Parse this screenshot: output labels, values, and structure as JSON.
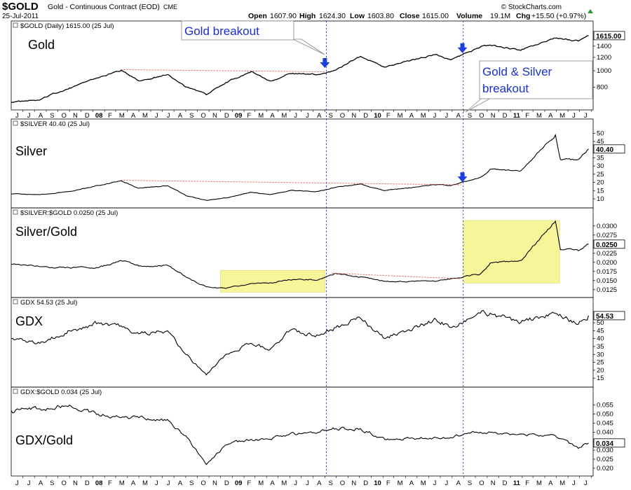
{
  "header": {
    "symbol": "$GOLD",
    "description": "Gold - Continuous Contract (EOD)",
    "exchange": "CME",
    "date": "25-Jul-2011",
    "open_label": "Open",
    "open": "1607.90",
    "high_label": "High",
    "high": "1624.30",
    "low_label": "Low",
    "low": "1603.80",
    "close_label": "Close",
    "close": "1615.00",
    "volume_label": "Volume",
    "volume": "19.1M",
    "chg_label": "Chg",
    "chg": "+15.50 (+0.97%)",
    "credit": "© StockCharts.com"
  },
  "annotations": {
    "gold_breakout": "Gold breakout",
    "gold_silver_breakout_line1": "Gold & Silver",
    "gold_silver_breakout_line2": "breakout"
  },
  "chart_data": [
    {
      "type": "line",
      "legend": "$GOLD (Daily) 1615.00 (25 Jul)",
      "label": "Gold",
      "last_value_label": "1615.00",
      "y_ticks": [
        "800",
        "1000",
        "1200",
        "1400"
      ],
      "y_tick_values": [
        800,
        1000,
        1200,
        1400
      ],
      "ylim": [
        620,
        1660
      ],
      "log": true,
      "series": [
        {
          "x": [
            "2007-06-01",
            "2007-08-15",
            "2007-11-01",
            "2008-03-15",
            "2008-05-01",
            "2008-07-15",
            "2008-09-01",
            "2008-10-25",
            "2008-12-15",
            "2009-02-20",
            "2009-04-10",
            "2009-06-01",
            "2009-08-15",
            "2009-09-30",
            "2009-12-03",
            "2010-02-05",
            "2010-06-20",
            "2010-07-28",
            "2010-10-14",
            "2010-11-09",
            "2011-01-28",
            "2011-04-29",
            "2011-06-28",
            "2011-07-25"
          ],
          "values": [
            650,
            670,
            790,
            1003,
            870,
            950,
            800,
            720,
            850,
            990,
            870,
            960,
            950,
            1010,
            1215,
            1050,
            1250,
            1160,
            1380,
            1420,
            1320,
            1560,
            1500,
            1615
          ]
        }
      ]
    },
    {
      "type": "line",
      "legend": "$SILVER 40.40 (25 Jul)",
      "label": "Silver",
      "last_value_label": "40.40",
      "y_ticks": [
        "10",
        "15",
        "20",
        "25",
        "30",
        "35",
        "40",
        "45",
        "50"
      ],
      "y_tick_values": [
        10,
        15,
        20,
        25,
        30,
        35,
        40,
        45,
        50
      ],
      "ylim": [
        7,
        51
      ],
      "series": [
        {
          "x": [
            "2007-06-01",
            "2007-08-15",
            "2007-11-01",
            "2008-03-15",
            "2008-05-01",
            "2008-07-15",
            "2008-09-01",
            "2008-10-25",
            "2008-12-15",
            "2009-02-20",
            "2009-04-10",
            "2009-06-01",
            "2009-08-15",
            "2009-09-30",
            "2009-12-03",
            "2010-02-05",
            "2010-06-20",
            "2010-07-28",
            "2010-10-14",
            "2010-11-09",
            "2011-01-28",
            "2011-04-29",
            "2011-05-12",
            "2011-06-28",
            "2011-07-25"
          ],
          "values": [
            13,
            12.5,
            14.5,
            21,
            16.5,
            18,
            12,
            9,
            10.5,
            14,
            12.5,
            15,
            14.5,
            17,
            19,
            15,
            18.5,
            18,
            23,
            28,
            27,
            49,
            34,
            34,
            40.4
          ]
        }
      ]
    },
    {
      "type": "line",
      "legend": "$SILVER:$GOLD 0.0250 (25 Jul)",
      "label": "Silver/Gold",
      "last_value_label": "0.0250",
      "y_ticks": [
        "0.0125",
        "0.0150",
        "0.0175",
        "0.0200",
        "0.0225",
        "0.0250",
        "0.0275",
        "0.0300"
      ],
      "y_tick_values": [
        0.0125,
        0.015,
        0.0175,
        0.02,
        0.0225,
        0.025,
        0.0275,
        0.03
      ],
      "ylim": [
        0.0115,
        0.0315
      ],
      "series": [
        {
          "x": [
            "2007-06-01",
            "2007-08-15",
            "2007-11-01",
            "2008-01-15",
            "2008-03-15",
            "2008-05-01",
            "2008-07-15",
            "2008-09-01",
            "2008-10-25",
            "2008-12-15",
            "2009-02-20",
            "2009-04-10",
            "2009-06-01",
            "2009-08-15",
            "2009-09-30",
            "2009-12-03",
            "2010-02-05",
            "2010-06-20",
            "2010-07-28",
            "2010-10-14",
            "2010-11-09",
            "2011-01-28",
            "2011-04-29",
            "2011-05-12",
            "2011-06-28",
            "2011-07-25"
          ],
          "values": [
            0.0195,
            0.0188,
            0.0185,
            0.0185,
            0.0205,
            0.019,
            0.0192,
            0.016,
            0.0133,
            0.0128,
            0.0142,
            0.0144,
            0.0152,
            0.0152,
            0.017,
            0.016,
            0.0148,
            0.0148,
            0.0155,
            0.0168,
            0.0198,
            0.0205,
            0.0313,
            0.0235,
            0.0232,
            0.025
          ]
        }
      ]
    },
    {
      "type": "line",
      "legend": "GDX 54.53 (25 Jul)",
      "label": "GDX",
      "last_value_label": "54.53",
      "y_ticks": [
        "15",
        "20",
        "25",
        "30",
        "35",
        "40",
        "45",
        "50"
      ],
      "y_tick_values": [
        15,
        20,
        25,
        30,
        35,
        40,
        45,
        50
      ],
      "ylim": [
        12,
        58
      ],
      "series": [
        {
          "x": [
            "2007-06-01",
            "2007-08-15",
            "2007-11-01",
            "2008-01-15",
            "2008-03-15",
            "2008-05-01",
            "2008-07-15",
            "2008-09-01",
            "2008-10-25",
            "2008-12-15",
            "2009-02-20",
            "2009-04-10",
            "2009-06-01",
            "2009-08-15",
            "2009-09-30",
            "2009-12-03",
            "2010-02-05",
            "2010-06-20",
            "2010-07-28",
            "2010-10-14",
            "2010-11-09",
            "2011-01-28",
            "2011-04-29",
            "2011-06-28",
            "2011-07-25"
          ],
          "values": [
            40,
            37,
            45,
            50,
            48,
            43,
            45,
            30,
            17,
            30,
            37,
            33,
            45,
            42,
            47,
            53,
            40,
            52,
            47,
            56,
            56,
            50,
            56,
            49,
            54.5
          ]
        }
      ]
    },
    {
      "type": "line",
      "legend": "GDX:$GOLD 0.034 (25 Jul)",
      "label": "GDX/Gold",
      "last_value_label": "0.034",
      "y_ticks": [
        "0.020",
        "0.025",
        "0.030",
        "0.035",
        "0.040",
        "0.045",
        "0.050",
        "0.055"
      ],
      "y_tick_values": [
        0.02,
        0.025,
        0.03,
        0.035,
        0.04,
        0.045,
        0.05,
        0.055
      ],
      "ylim": [
        0.018,
        0.058
      ],
      "series": [
        {
          "x": [
            "2007-06-01",
            "2007-08-15",
            "2007-11-01",
            "2008-01-15",
            "2008-03-15",
            "2008-05-01",
            "2008-07-15",
            "2008-09-01",
            "2008-10-25",
            "2008-12-15",
            "2009-02-20",
            "2009-04-10",
            "2009-06-01",
            "2009-08-15",
            "2009-09-30",
            "2009-12-03",
            "2010-02-05",
            "2010-06-20",
            "2010-07-28",
            "2010-10-14",
            "2010-11-09",
            "2011-01-28",
            "2011-04-29",
            "2011-06-28",
            "2011-07-25"
          ],
          "values": [
            0.052,
            0.053,
            0.055,
            0.05,
            0.048,
            0.048,
            0.047,
            0.038,
            0.022,
            0.033,
            0.036,
            0.036,
            0.039,
            0.04,
            0.042,
            0.042,
            0.036,
            0.037,
            0.037,
            0.04,
            0.04,
            0.039,
            0.038,
            0.031,
            0.034
          ]
        }
      ]
    }
  ],
  "x_axis": {
    "ticks": [
      {
        "date": "2007-07-01",
        "label": "J"
      },
      {
        "date": "2007-08-01",
        "label": "J"
      },
      {
        "date": "2007-09-01",
        "label": "A"
      },
      {
        "date": "2007-10-01",
        "label": "S"
      },
      {
        "date": "2007-11-01",
        "label": "O"
      },
      {
        "date": "2007-12-01",
        "label": "N"
      },
      {
        "date": "2008-01-01",
        "label": "D"
      },
      {
        "date": "2008-02-01",
        "label": "08"
      },
      {
        "date": "2008-03-01",
        "label": "F"
      },
      {
        "date": "2008-04-01",
        "label": "M"
      },
      {
        "date": "2008-05-01",
        "label": "A"
      },
      {
        "date": "2008-06-01",
        "label": "M"
      },
      {
        "date": "2008-07-01",
        "label": "J"
      },
      {
        "date": "2008-08-01",
        "label": "J"
      },
      {
        "date": "2008-09-01",
        "label": "A"
      },
      {
        "date": "2008-10-01",
        "label": "S"
      },
      {
        "date": "2008-11-01",
        "label": "O"
      },
      {
        "date": "2008-12-01",
        "label": "N"
      },
      {
        "date": "2009-01-01",
        "label": "D"
      },
      {
        "date": "2009-02-01",
        "label": "09"
      },
      {
        "date": "2009-03-01",
        "label": "F"
      },
      {
        "date": "2009-04-01",
        "label": "M"
      },
      {
        "date": "2009-05-01",
        "label": "A"
      },
      {
        "date": "2009-06-01",
        "label": "M"
      },
      {
        "date": "2009-07-01",
        "label": "J"
      },
      {
        "date": "2009-08-01",
        "label": "J"
      },
      {
        "date": "2009-09-01",
        "label": "A"
      },
      {
        "date": "2009-10-01",
        "label": "S"
      },
      {
        "date": "2009-11-01",
        "label": "O"
      },
      {
        "date": "2009-12-01",
        "label": "N"
      },
      {
        "date": "2010-01-01",
        "label": "D"
      },
      {
        "date": "2010-02-01",
        "label": "10"
      },
      {
        "date": "2010-03-01",
        "label": "F"
      },
      {
        "date": "2010-04-01",
        "label": "M"
      },
      {
        "date": "2010-05-01",
        "label": "A"
      },
      {
        "date": "2010-06-01",
        "label": "M"
      },
      {
        "date": "2010-07-01",
        "label": "J"
      },
      {
        "date": "2010-08-01",
        "label": "J"
      },
      {
        "date": "2010-09-01",
        "label": "A"
      },
      {
        "date": "2010-10-01",
        "label": "S"
      },
      {
        "date": "2010-11-01",
        "label": "O"
      },
      {
        "date": "2010-12-01",
        "label": "N"
      },
      {
        "date": "2011-01-01",
        "label": "D"
      },
      {
        "date": "2011-02-01",
        "label": "11"
      },
      {
        "date": "2011-03-01",
        "label": "F"
      },
      {
        "date": "2011-04-01",
        "label": "M"
      },
      {
        "date": "2011-05-01",
        "label": "A"
      },
      {
        "date": "2011-06-01",
        "label": "M"
      },
      {
        "date": "2011-07-01",
        "label": "J"
      },
      {
        "date": "2011-08-01",
        "label": "J"
      },
      {
        "date": "2011-09-01",
        "label": "A"
      }
    ],
    "range": [
      "2007-06-01",
      "2011-08-06"
    ]
  },
  "markers": {
    "breakout_dates": [
      "2009-09-05",
      "2010-08-30"
    ],
    "arrow_dates": [
      "2009-09-01",
      "2010-08-28"
    ],
    "resistance_lines": [
      {
        "panel": 0,
        "from_date": "2008-03-15",
        "to_date": "2009-09-01",
        "from_value": 1015,
        "to_value": 985
      },
      {
        "panel": 1,
        "from_date": "2008-03-15",
        "to_date": "2010-08-25",
        "from_value": 21.3,
        "to_value": 18.5
      },
      {
        "panel": 2,
        "from_date": "2009-09-20",
        "to_date": "2010-08-25",
        "from_value": 0.017,
        "to_value": 0.0155
      }
    ],
    "highlight_boxes": [
      {
        "panel": 2,
        "from_date": "2008-12-01",
        "to_date": "2009-09-01",
        "from_value": 0.0118,
        "to_value": 0.0178
      },
      {
        "panel": 2,
        "from_date": "2010-08-30",
        "to_date": "2011-05-10",
        "from_value": 0.0143,
        "to_value": 0.0315
      }
    ],
    "colors": {
      "arrow": "#1a3fe0",
      "breakout_line": "#1a2fd0",
      "resistance": "#e33b3b",
      "highlight": "#f6f59a",
      "annotation_text": "#1a2fd0",
      "series": "#000000"
    }
  }
}
